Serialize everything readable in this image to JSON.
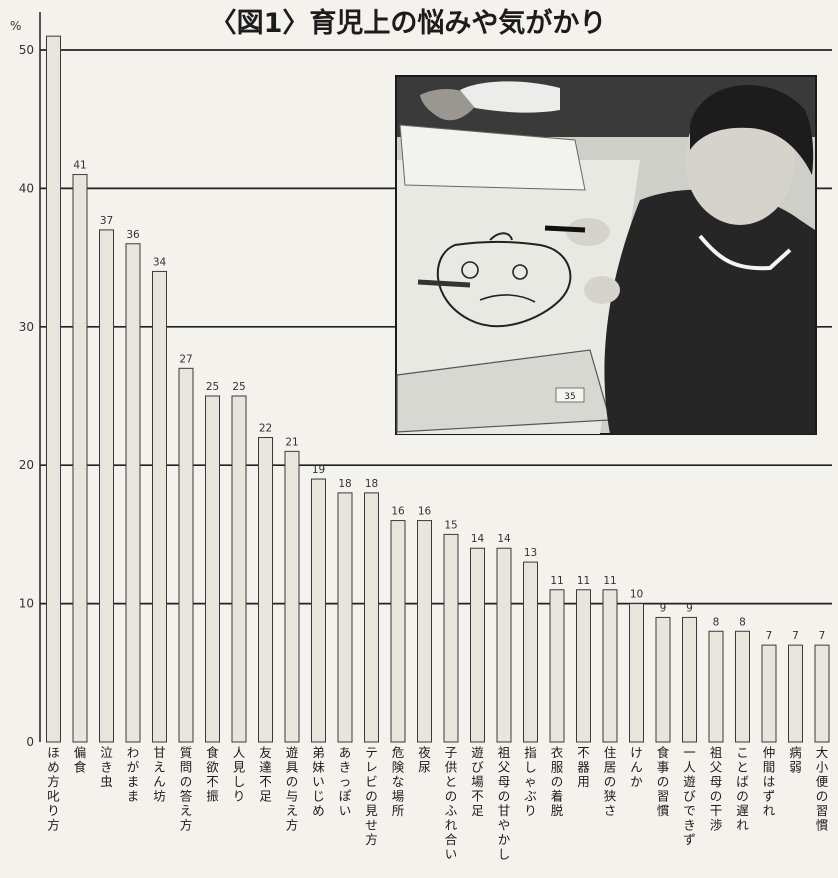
{
  "chart_data": {
    "type": "bar",
    "title": "〈図1〉育児上の悩みや気がかり",
    "ylabel": "%",
    "ylim": [
      0,
      50
    ],
    "yticks": [
      0,
      10,
      20,
      30,
      40,
      50
    ],
    "grid": true,
    "categories": [
      "ほめ方叱り方",
      "偏食",
      "泣き虫",
      "わがまま",
      "甘えん坊",
      "質問の答え方",
      "食欲不振",
      "人見しり",
      "友達不足",
      "遊具の与え方",
      "弟妹いじめ",
      "あきっぽい",
      "テレビの見せ方",
      "危険な場所",
      "夜尿",
      "子供とのふれ合い",
      "遊び場不足",
      "祖父母の甘やかし",
      "指しゃぶり",
      "衣服の着脱",
      "不器用",
      "住居の狭さ",
      "けんか",
      "食事の習慣",
      "一人遊びできず",
      "祖父母の干渉",
      "ことばの遅れ",
      "仲間はずれ",
      "病弱",
      "大小便の習慣"
    ],
    "values": [
      51,
      41,
      37,
      36,
      34,
      27,
      25,
      25,
      22,
      21,
      19,
      18,
      18,
      16,
      16,
      15,
      14,
      14,
      13,
      11,
      11,
      11,
      10,
      9,
      9,
      8,
      8,
      7,
      7,
      7
    ],
    "value_labels": [
      "",
      "41",
      "37",
      "36",
      "34",
      "27",
      "25",
      "25",
      "22",
      "21",
      "19",
      "18",
      "18",
      "16",
      "16",
      "15",
      "14",
      "14",
      "13",
      "11",
      "11",
      "11",
      "10",
      "9",
      "9",
      "8",
      "8",
      "7",
      "7",
      "7"
    ]
  },
  "inset_photo": {
    "number_tag": "35",
    "colors": {
      "frame": "#1a1a1a",
      "dark": "#262626",
      "paper": "#e9e9e4"
    }
  }
}
